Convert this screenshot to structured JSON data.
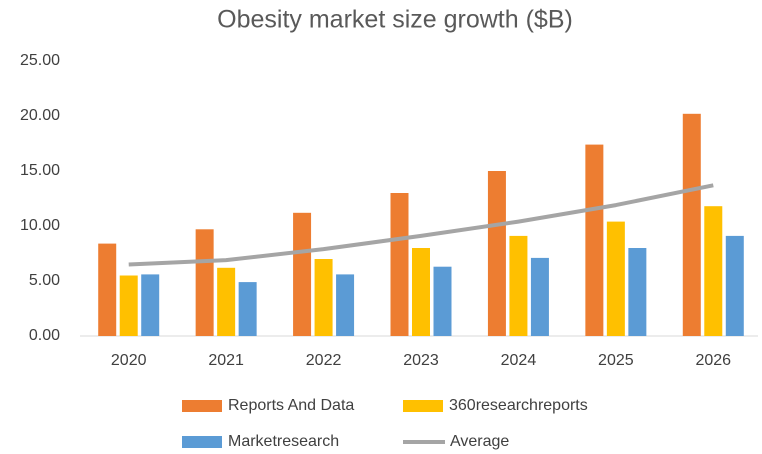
{
  "chart_data": {
    "type": "bar",
    "title": "Obesity market size growth ($B)",
    "categories": [
      "2020",
      "2021",
      "2022",
      "2023",
      "2024",
      "2025",
      "2026"
    ],
    "series": [
      {
        "name": "Reports And Data",
        "type": "bar",
        "color": "#ed7d31",
        "values": [
          8.4,
          9.7,
          11.2,
          13.0,
          15.0,
          17.4,
          20.2
        ]
      },
      {
        "name": "360researchreports",
        "type": "bar",
        "color": "#ffc000",
        "values": [
          5.5,
          6.2,
          7.0,
          8.0,
          9.1,
          10.4,
          11.8
        ]
      },
      {
        "name": "Marketresearch",
        "type": "bar",
        "color": "#5b9bd5",
        "values": [
          5.6,
          4.9,
          5.6,
          6.3,
          7.1,
          8.0,
          9.1
        ]
      },
      {
        "name": "Average",
        "type": "line",
        "color": "#a5a5a5",
        "values": [
          6.5,
          6.9,
          7.9,
          9.1,
          10.4,
          11.9,
          13.7
        ]
      }
    ],
    "ylim": [
      0,
      25
    ],
    "yticks": [
      {
        "value": 0,
        "label": "0.00"
      },
      {
        "value": 5,
        "label": "5.00"
      },
      {
        "value": 10,
        "label": "10.00"
      },
      {
        "value": 15,
        "label": "15.00"
      },
      {
        "value": 20,
        "label": "20.00"
      },
      {
        "value": 25,
        "label": "25.00"
      }
    ],
    "grid": false,
    "legend": "bottom"
  }
}
